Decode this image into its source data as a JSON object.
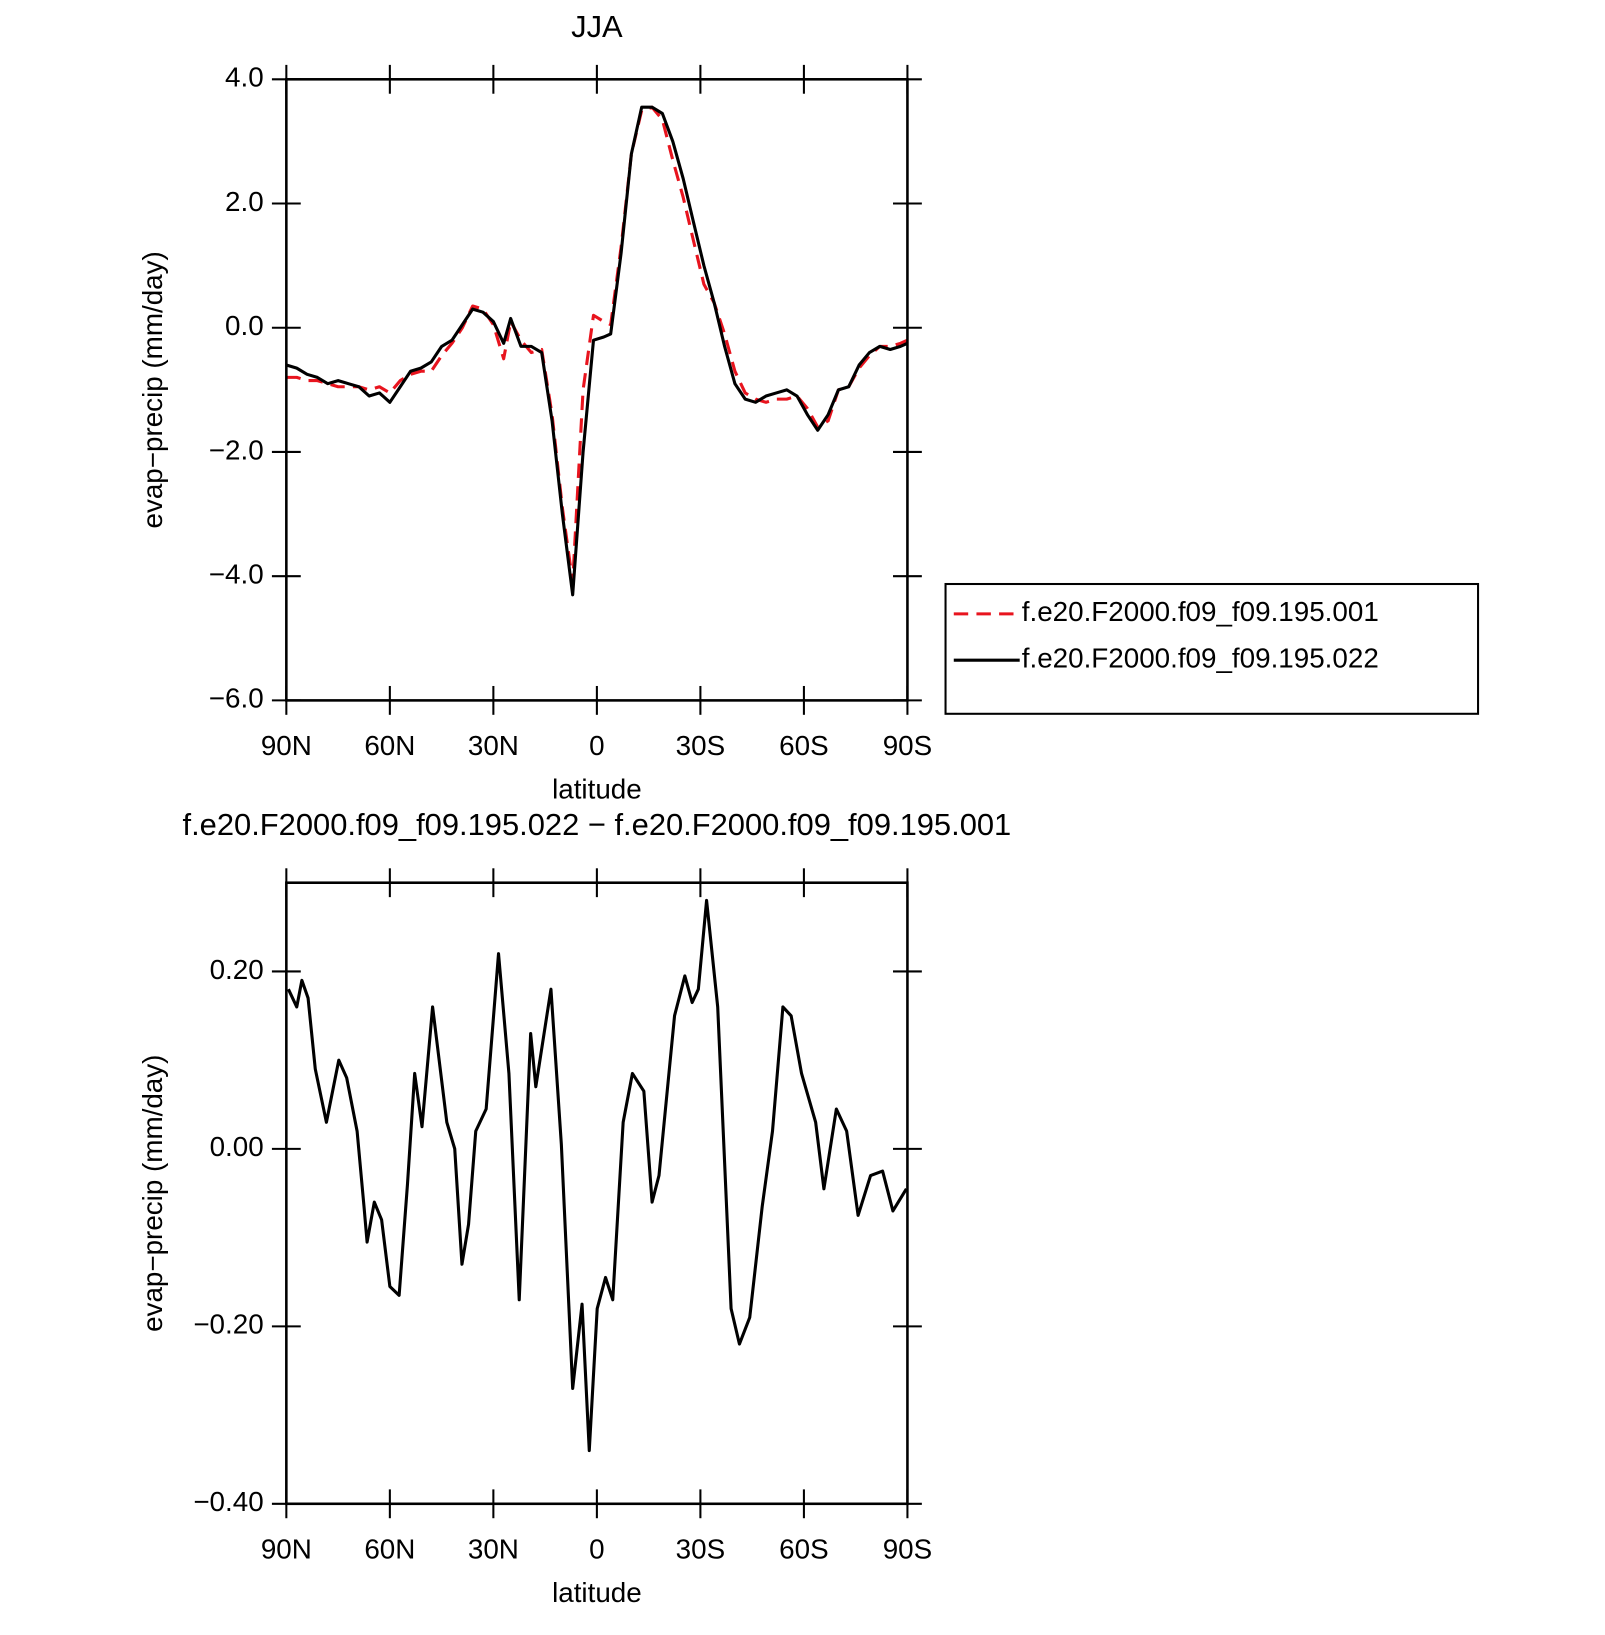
{
  "chart_data": [
    {
      "type": "line",
      "title": "JJA",
      "xlabel": "latitude",
      "ylabel": "evap−precip (mm/day)",
      "xlim": [
        90,
        -90
      ],
      "xticks": [
        {
          "value": 90,
          "label": "90N"
        },
        {
          "value": 60,
          "label": "60N"
        },
        {
          "value": 30,
          "label": "30N"
        },
        0,
        {
          "value": -30,
          "label": "30S"
        },
        {
          "value": -60,
          "label": "60S"
        },
        {
          "value": -90,
          "label": "90S"
        }
      ],
      "ylim": [
        -6,
        4
      ],
      "yticks": [
        {
          "value": 4,
          "label": "4.0"
        },
        {
          "value": 2,
          "label": "2.0"
        },
        {
          "value": 0,
          "label": "0.0"
        },
        {
          "value": -2,
          "label": "−2.0"
        },
        {
          "value": -4,
          "label": "−4.0"
        },
        {
          "value": -6,
          "label": "−6.0"
        }
      ],
      "legend": "outside-right",
      "x": [
        90,
        87,
        84,
        81,
        78,
        75,
        72,
        69,
        66,
        63,
        60,
        57,
        54,
        51,
        48,
        45,
        42,
        39,
        36,
        33,
        30,
        27,
        25,
        22,
        19,
        16,
        13,
        10,
        7,
        4,
        1,
        -2,
        -4,
        -7,
        -10,
        -13,
        -16,
        -19,
        -22,
        -25,
        -28,
        -31,
        -34,
        -37,
        -40,
        -43,
        -46,
        -49,
        -52,
        -55,
        -58,
        -61,
        -64,
        -67,
        -70,
        -73,
        -76,
        -79,
        -82,
        -85,
        -88,
        -90
      ],
      "series": [
        {
          "name": "f.e20.F2000.f09_f09.195.001",
          "color": "#e8141e",
          "dash": true,
          "values": [
            -0.8,
            -0.8,
            -0.85,
            -0.85,
            -0.9,
            -0.95,
            -0.95,
            -0.95,
            -1.0,
            -0.95,
            -1.05,
            -0.85,
            -0.75,
            -0.7,
            -0.7,
            -0.45,
            -0.25,
            0.0,
            0.35,
            0.3,
            0.05,
            -0.5,
            0.1,
            -0.2,
            -0.4,
            -0.35,
            -1.4,
            -2.9,
            -4.1,
            -1.0,
            0.2,
            0.1,
            0.05,
            1.3,
            2.8,
            3.5,
            3.55,
            3.35,
            2.7,
            2.1,
            1.4,
            0.7,
            0.4,
            -0.1,
            -0.7,
            -1.05,
            -1.15,
            -1.2,
            -1.15,
            -1.15,
            -1.1,
            -1.3,
            -1.6,
            -1.5,
            -1.0,
            -0.95,
            -0.65,
            -0.45,
            -0.3,
            -0.3,
            -0.25,
            -0.2
          ]
        },
        {
          "name": "f.e20.F2000.f09_f09.195.022",
          "color": "#000000",
          "dash": false,
          "values": [
            -0.6,
            -0.65,
            -0.75,
            -0.8,
            -0.9,
            -0.85,
            -0.9,
            -0.95,
            -1.1,
            -1.05,
            -1.2,
            -0.95,
            -0.7,
            -0.65,
            -0.55,
            -0.3,
            -0.2,
            0.05,
            0.3,
            0.25,
            0.1,
            -0.25,
            0.15,
            -0.3,
            -0.3,
            -0.4,
            -1.5,
            -3.0,
            -4.3,
            -2.0,
            -0.2,
            -0.15,
            -0.1,
            1.2,
            2.8,
            3.55,
            3.55,
            3.45,
            3.0,
            2.4,
            1.7,
            1.0,
            0.4,
            -0.3,
            -0.9,
            -1.15,
            -1.2,
            -1.1,
            -1.05,
            -1.0,
            -1.1,
            -1.4,
            -1.65,
            -1.4,
            -1.0,
            -0.95,
            -0.6,
            -0.4,
            -0.3,
            -0.35,
            -0.3,
            -0.25
          ]
        }
      ]
    },
    {
      "type": "line",
      "title": "f.e20.F2000.f09_f09.195.022 − f.e20.F2000.f09_f09.195.001",
      "xlabel": "latitude",
      "ylabel": "evap−precip (mm/day)",
      "xlim": [
        90,
        -90
      ],
      "xticks": [
        {
          "value": 90,
          "label": "90N"
        },
        {
          "value": 60,
          "label": "60N"
        },
        {
          "value": 30,
          "label": "30N"
        },
        0,
        {
          "value": -30,
          "label": "30S"
        },
        {
          "value": -60,
          "label": "60S"
        },
        {
          "value": -90,
          "label": "90S"
        }
      ],
      "ylim": [
        -0.4,
        0.3
      ],
      "yticks": [
        {
          "value": 0.2,
          "label": "0.20"
        },
        {
          "value": 0,
          "label": "0.00"
        },
        {
          "value": -0.2,
          "label": "−0.20"
        },
        {
          "value": -0.4,
          "label": "−0.40"
        }
      ],
      "x": [
        89.4,
        87,
        85.5,
        83.7,
        81.6,
        78.4,
        74.8,
        72.5,
        69.5,
        67.5,
        66.6,
        64.5,
        62.4,
        60,
        57.3,
        54.9,
        52.8,
        50.7,
        47.6,
        43.5,
        41.2,
        39.1,
        37.2,
        35.1,
        32.1,
        28.5,
        25.5,
        22.5,
        19.2,
        17.7,
        13.3,
        10.3,
        7,
        4.3,
        2.2,
        -0.1,
        -2.5,
        -4.6,
        -7.6,
        -10.3,
        -13.6,
        -16,
        -18,
        -22.5,
        -25.5,
        -27.6,
        -29.4,
        -31.8,
        -35,
        -38.9,
        -41.3,
        -44.3,
        -47.9,
        -50.9,
        -53.9,
        -56.3,
        -59.3,
        -63.4,
        -65.8,
        -69.4,
        -72.4,
        -75.7,
        -79.3,
        -82.8,
        -85.8,
        -89.7
      ],
      "color": "#000000",
      "values": [
        0.18,
        0.16,
        0.19,
        0.17,
        0.09,
        0.03,
        0.1,
        0.08,
        0.02,
        -0.065,
        -0.105,
        -0.06,
        -0.08,
        -0.155,
        -0.165,
        -0.04,
        0.085,
        0.025,
        0.16,
        0.03,
        0,
        -0.13,
        -0.085,
        0.02,
        0.045,
        0.22,
        0.085,
        -0.17,
        0.13,
        0.07,
        0.18,
        0.005,
        -0.27,
        -0.175,
        -0.34,
        -0.18,
        -0.145,
        -0.17,
        0.03,
        0.085,
        0.065,
        -0.06,
        -0.03,
        0.15,
        0.195,
        0.165,
        0.18,
        0.28,
        0.16,
        -0.18,
        -0.22,
        -0.19,
        -0.065,
        0.02,
        0.16,
        0.15,
        0.085,
        0.03,
        -0.045,
        0.045,
        0.02,
        -0.075,
        -0.03,
        -0.025,
        -0.07,
        -0.045
      ]
    }
  ]
}
